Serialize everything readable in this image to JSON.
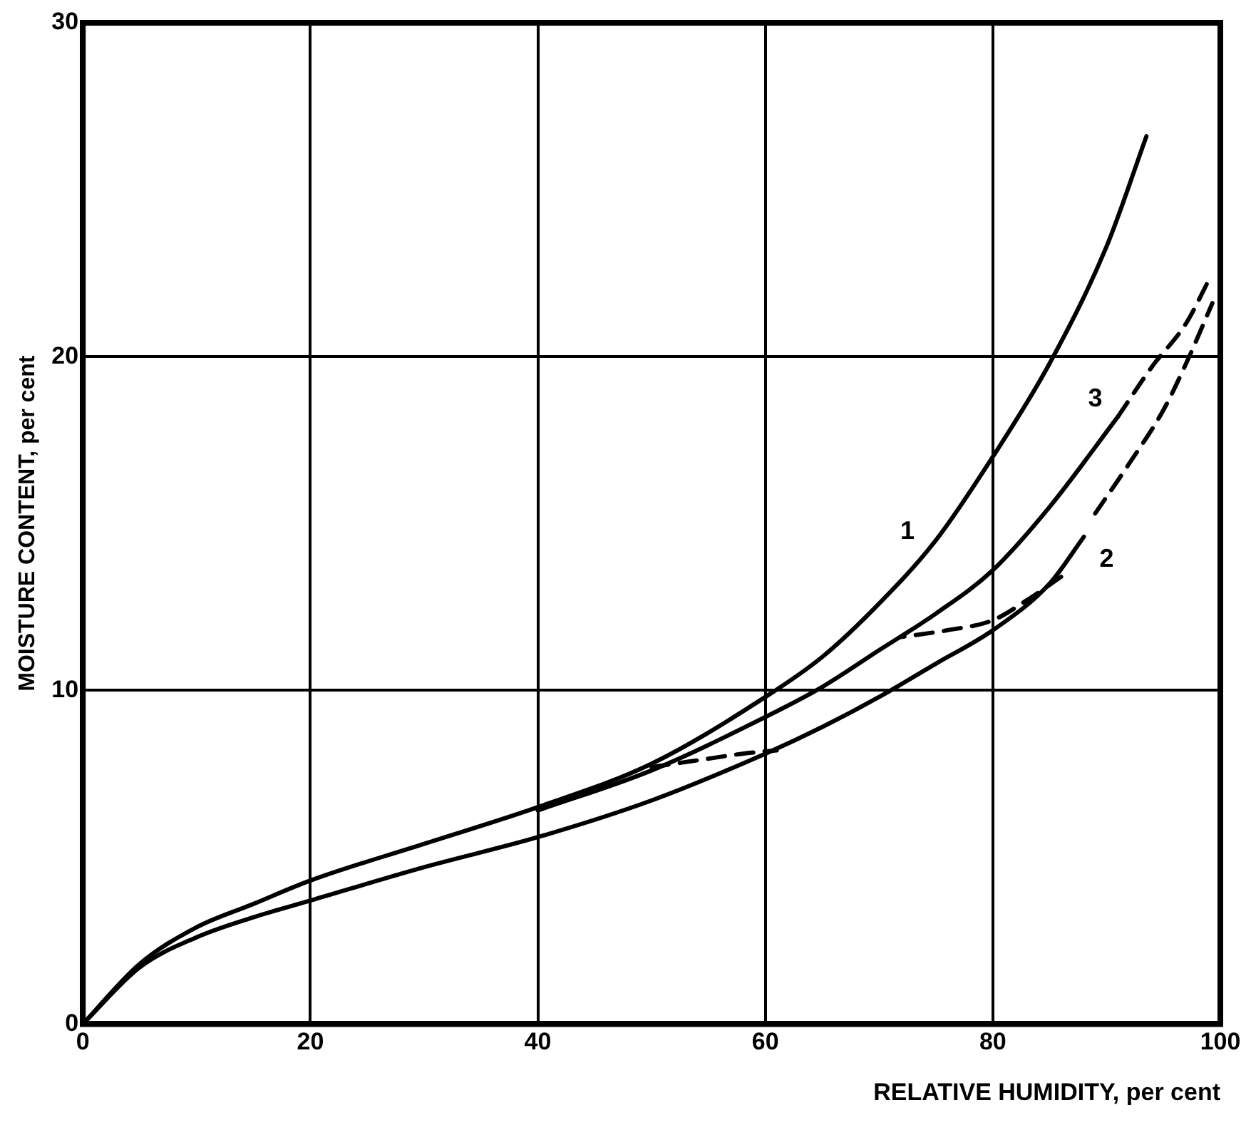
{
  "chart_data": {
    "type": "line",
    "xlabel": "RELATIVE HUMIDITY, per cent",
    "ylabel": "MOISTURE CONTENT, per cent",
    "xlim": [
      0,
      100
    ],
    "ylim": [
      0,
      30
    ],
    "xticks": [
      0,
      20,
      40,
      60,
      80,
      100
    ],
    "yticks": [
      0,
      10,
      20,
      30
    ],
    "grid": true,
    "legend": false,
    "marker": "none",
    "series": [
      {
        "name": "1",
        "color": "#000000",
        "line_style": "solid",
        "x": [
          0,
          5,
          10,
          15,
          20,
          30,
          40,
          50,
          60,
          65,
          70,
          75,
          80,
          85,
          90,
          93.5
        ],
        "values": [
          0,
          1.8,
          2.9,
          3.6,
          4.3,
          5.4,
          6.5,
          7.8,
          9.8,
          11,
          12.6,
          14.5,
          17,
          19.8,
          23.3,
          26.6
        ]
      },
      {
        "name": "3",
        "color": "#000000",
        "line_style": "solid",
        "x": [
          40,
          50,
          60,
          65,
          70,
          75,
          80,
          85,
          91
        ],
        "values": [
          6.4,
          7.6,
          9.2,
          10.1,
          11.2,
          12.3,
          13.6,
          15.5,
          18.2
        ]
      },
      {
        "color": "#000000",
        "line_style": "dashed",
        "x": [
          91,
          94,
          97,
          99
        ],
        "values": [
          18.2,
          19.7,
          21,
          22.3
        ]
      },
      {
        "name": "2",
        "color": "#000000",
        "line_style": "solid",
        "x": [
          0,
          5,
          10,
          15,
          20,
          30,
          40,
          50,
          60,
          65,
          70,
          75,
          80,
          85,
          88
        ],
        "values": [
          0,
          1.7,
          2.6,
          3.2,
          3.7,
          4.7,
          5.6,
          6.7,
          8.1,
          8.9,
          9.8,
          10.8,
          11.8,
          13.2,
          14.6
        ]
      },
      {
        "color": "#000000",
        "line_style": "dashed",
        "x": [
          89,
          92,
          95,
          97,
          99.3
        ],
        "values": [
          15.3,
          16.8,
          18.4,
          19.8,
          21.6
        ]
      },
      {
        "color": "#000000",
        "line_style": "dashed",
        "x": [
          86,
          83,
          80,
          76,
          72
        ],
        "values": [
          13.4,
          12.7,
          12.1,
          11.8,
          11.6
        ]
      },
      {
        "color": "#000000",
        "line_style": "dashed",
        "x": [
          50,
          54,
          58,
          61
        ],
        "values": [
          7.7,
          7.9,
          8.1,
          8.2
        ]
      }
    ]
  }
}
